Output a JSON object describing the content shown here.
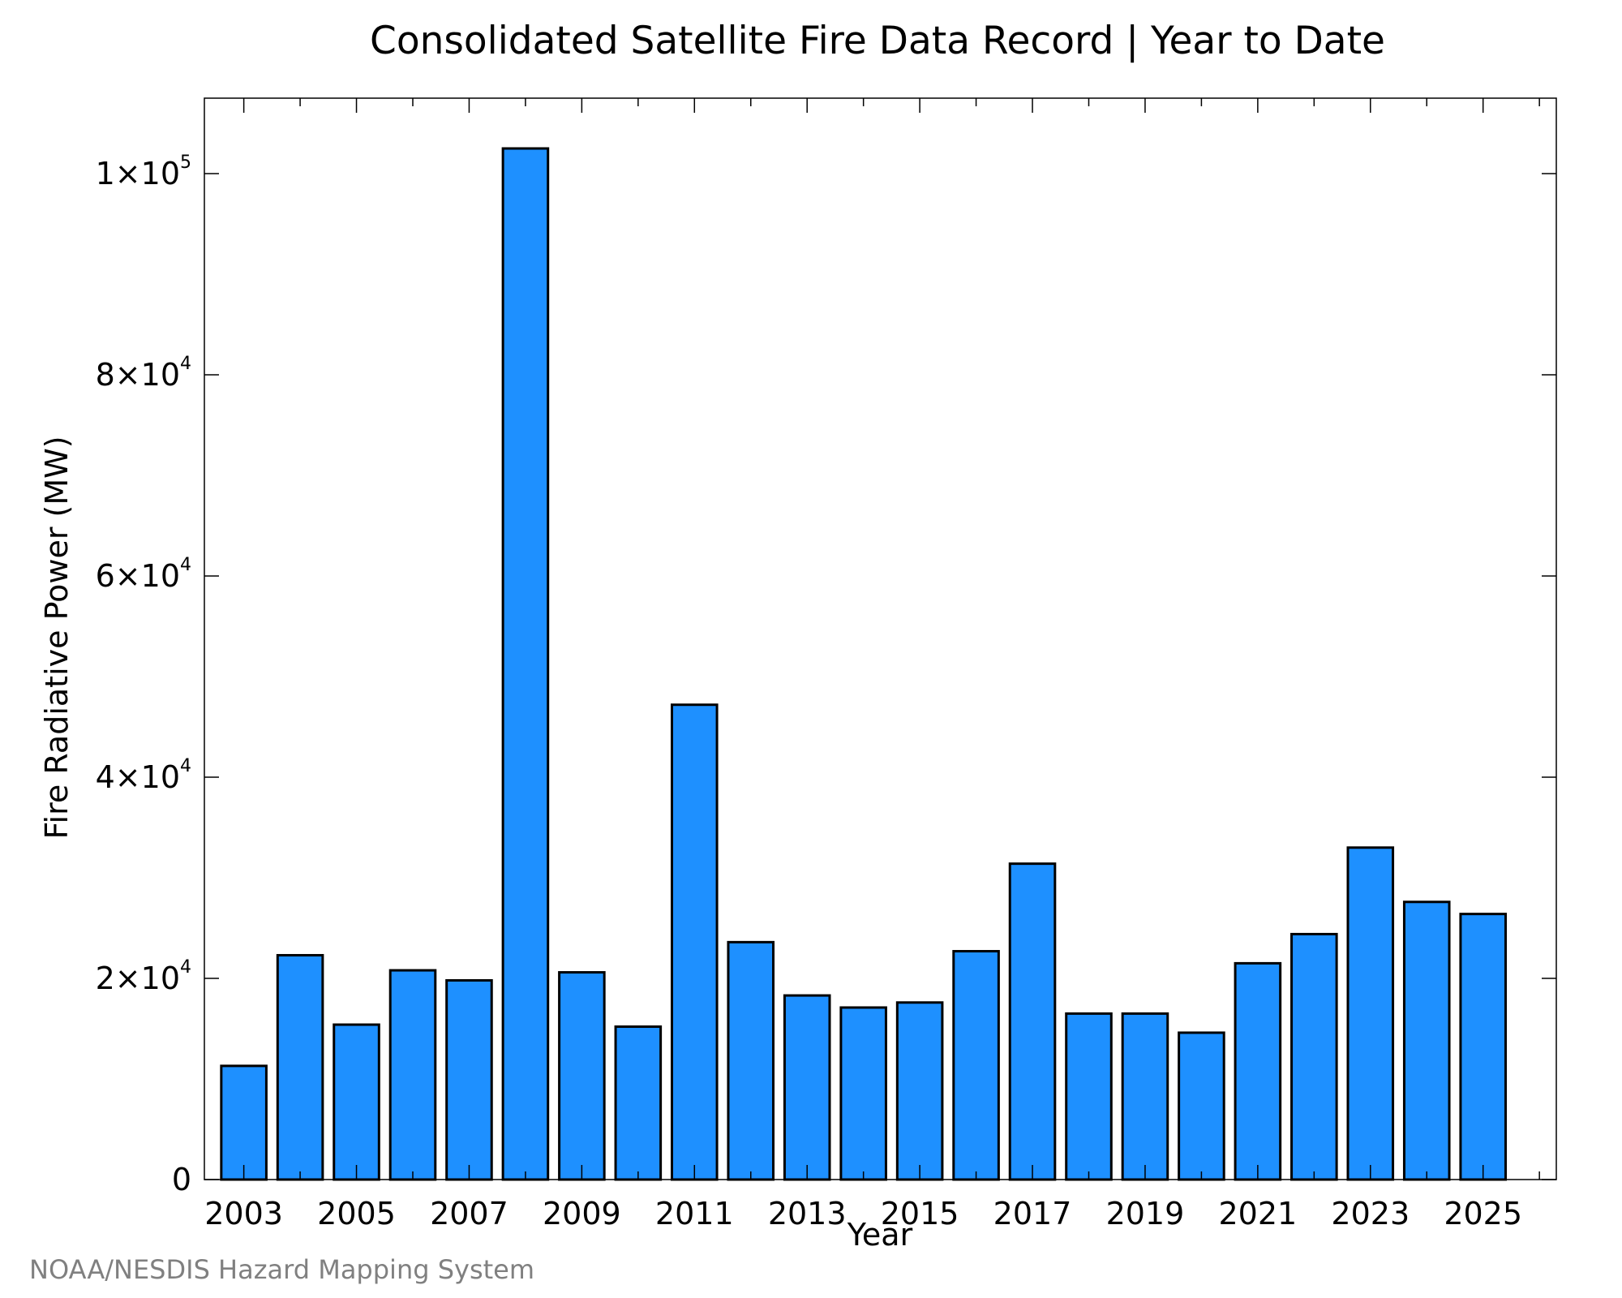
{
  "colors": {
    "bar_fill": "#1e90ff",
    "bar_stroke": "#000000",
    "axis": "#000000",
    "text": "#000000",
    "credit": "#808080",
    "background": "#ffffff"
  },
  "credit": "NOAA/NESDIS Hazard Mapping System",
  "chart_data": {
    "type": "bar",
    "title": "Consolidated Satellite Fire Data Record | Year to Date",
    "xlabel": "Year",
    "ylabel": "Fire Radiative Power (MW)",
    "categories": [
      2003,
      2004,
      2005,
      2006,
      2007,
      2008,
      2009,
      2010,
      2011,
      2012,
      2013,
      2014,
      2015,
      2016,
      2017,
      2018,
      2019,
      2020,
      2021,
      2022,
      2023,
      2024,
      2025
    ],
    "values": [
      11300,
      22300,
      15400,
      20800,
      19800,
      102500,
      20600,
      15200,
      47200,
      23600,
      18300,
      17100,
      17600,
      22700,
      31400,
      16500,
      16500,
      14600,
      21500,
      24400,
      33000,
      27600,
      26400
    ],
    "xlim": [
      2002.3,
      2026.3
    ],
    "ylim": [
      0,
      107500
    ],
    "x_ticks": [
      2003,
      2005,
      2007,
      2009,
      2011,
      2013,
      2015,
      2017,
      2019,
      2021,
      2023,
      2025
    ],
    "x_tick_labels": [
      "2003",
      "2005",
      "2007",
      "2009",
      "2011",
      "2013",
      "2015",
      "2017",
      "2019",
      "2021",
      "2023",
      "2025"
    ],
    "y_ticks": [
      {
        "value": 0,
        "mantissa": "0",
        "exponent": ""
      },
      {
        "value": 20000,
        "mantissa": "2×10",
        "exponent": "4"
      },
      {
        "value": 40000,
        "mantissa": "4×10",
        "exponent": "4"
      },
      {
        "value": 60000,
        "mantissa": "6×10",
        "exponent": "4"
      },
      {
        "value": 80000,
        "mantissa": "8×10",
        "exponent": "4"
      },
      {
        "value": 100000,
        "mantissa": "1×10",
        "exponent": "5"
      }
    ],
    "minor_x_ticks": true,
    "grid": false,
    "legend": "none"
  }
}
